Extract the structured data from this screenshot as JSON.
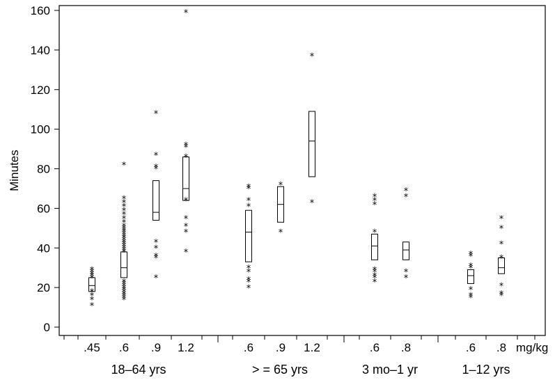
{
  "chart_data": {
    "type": "boxplot",
    "ylabel": "Minutes",
    "x_unit": "mg/kg",
    "ylim": [
      0,
      160
    ],
    "yticks": [
      0,
      20,
      40,
      60,
      80,
      100,
      120,
      140,
      160
    ],
    "grid": false,
    "groups": [
      {
        "label": "18–64 yrs",
        "boxes": [
          {
            "dose": ".45",
            "q1": 18,
            "median": 21,
            "q3": 25,
            "outliers": [
              12,
              15,
              17,
              19,
              26,
              27,
              28,
              29,
              30
            ]
          },
          {
            "dose": ".6",
            "q1": 25,
            "median": 30,
            "q3": 38,
            "outliers": [
              15,
              16,
              17,
              18,
              19,
              20,
              21,
              22,
              23,
              24,
              39,
              40,
              41,
              42,
              43,
              44,
              45,
              46,
              47,
              48,
              49,
              50,
              51,
              52,
              54,
              56,
              58,
              60,
              62,
              64,
              66,
              83
            ]
          },
          {
            "dose": ".9",
            "q1": 54,
            "median": 58,
            "q3": 74,
            "outliers": [
              26,
              36,
              37,
              41,
              44,
              81,
              82,
              88,
              109
            ]
          },
          {
            "dose": "1.2",
            "q1": 64,
            "median": 70,
            "q3": 86,
            "outliers": [
              39,
              49,
              52,
              56,
              65,
              87,
              92,
              93,
              160
            ]
          }
        ]
      },
      {
        "label": "> = 65 yrs",
        "boxes": [
          {
            "dose": ".6",
            "q1": 33,
            "median": 48,
            "q3": 59,
            "outliers": [
              21,
              24,
              25,
              29,
              31,
              62,
              65,
              71,
              72
            ]
          },
          {
            "dose": ".9",
            "q1": 53,
            "median": 62,
            "q3": 71,
            "outliers": [
              49,
              73
            ]
          },
          {
            "dose": "1.2",
            "q1": 76,
            "median": 94,
            "q3": 109,
            "outliers": [
              64,
              138
            ]
          }
        ]
      },
      {
        "label": "3 mo–1 yr",
        "boxes": [
          {
            "dose": ".6",
            "q1": 34,
            "median": 41,
            "q3": 47,
            "outliers": [
              24,
              26,
              27,
              29,
              30,
              49,
              63,
              65,
              67
            ]
          },
          {
            "dose": ".8",
            "q1": 34,
            "median": 39,
            "q3": 43,
            "outliers": [
              26,
              29,
              67,
              70
            ]
          }
        ]
      },
      {
        "label": "1–12 yrs",
        "boxes": [
          {
            "dose": ".6",
            "q1": 22,
            "median": 26,
            "q3": 29,
            "outliers": [
              16,
              17,
              20,
              31,
              32,
              37,
              38
            ]
          },
          {
            "dose": ".8",
            "q1": 27,
            "median": 30,
            "q3": 35,
            "outliers": [
              17,
              18,
              22,
              36,
              43,
              51,
              56
            ]
          }
        ]
      }
    ]
  }
}
